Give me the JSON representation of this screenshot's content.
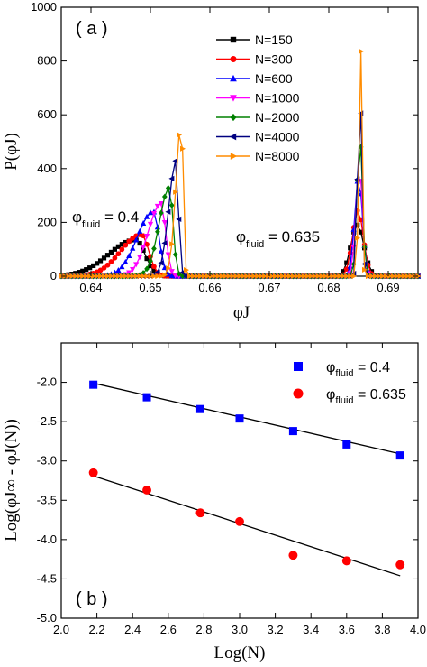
{
  "chart_data": [
    {
      "type": "line",
      "panel_label": "( a )",
      "ylabel": "P(φJ)",
      "xlabel": "φJ",
      "xlim": [
        0.635,
        0.695
      ],
      "ylim": [
        0,
        1000
      ],
      "xticks": [
        0.64,
        0.65,
        0.66,
        0.67,
        0.68,
        0.69
      ],
      "xtick_labels": [
        "0.64",
        "0.65",
        "0.66",
        "0.67",
        "0.68",
        "0.69"
      ],
      "yticks": [
        0,
        200,
        400,
        600,
        800,
        1000
      ],
      "ytick_labels": [
        "0",
        "200",
        "400",
        "600",
        "800",
        "1000"
      ],
      "legend_position": "top-right",
      "annotations": [
        {
          "symbol": "φ",
          "sub": "fluid",
          "text": " = 0.4"
        },
        {
          "symbol": "φ",
          "sub": "fluid",
          "text": " = 0.635"
        }
      ],
      "series": [
        {
          "name": "N=150",
          "color": "#000000",
          "marker": "square",
          "left": {
            "peak_x": 0.6475,
            "peak_y": 135,
            "width": 0.0045
          },
          "right": {
            "peak_x": 0.6848,
            "peak_y": 190,
            "width": 0.0011
          }
        },
        {
          "name": "N=300",
          "color": "#ff0000",
          "marker": "circle",
          "left": {
            "peak_x": 0.6485,
            "peak_y": 155,
            "width": 0.0035
          },
          "right": {
            "peak_x": 0.6849,
            "peak_y": 245,
            "width": 0.0009
          }
        },
        {
          "name": "N=600",
          "color": "#0000ff",
          "marker": "triangle-up",
          "left": {
            "peak_x": 0.6505,
            "peak_y": 240,
            "width": 0.0027
          },
          "right": {
            "peak_x": 0.685,
            "peak_y": 370,
            "width": 0.00065
          }
        },
        {
          "name": "N=1000",
          "color": "#ff00ff",
          "marker": "triangle-down",
          "left": {
            "peak_x": 0.6518,
            "peak_y": 270,
            "width": 0.0022
          },
          "right": {
            "peak_x": 0.6851,
            "peak_y": 410,
            "width": 0.00055
          }
        },
        {
          "name": "N=2000",
          "color": "#008000",
          "marker": "diamond",
          "left": {
            "peak_x": 0.6532,
            "peak_y": 330,
            "width": 0.0017
          },
          "right": {
            "peak_x": 0.6852,
            "peak_y": 530,
            "width": 0.00045
          }
        },
        {
          "name": "N=4000",
          "color": "#000080",
          "marker": "triangle-left",
          "left": {
            "peak_x": 0.6543,
            "peak_y": 430,
            "width": 0.0012
          },
          "right": {
            "peak_x": 0.6852,
            "peak_y": 720,
            "width": 0.00034
          }
        },
        {
          "name": "N=8000",
          "color": "#ff8c00",
          "marker": "triangle-right",
          "left": {
            "peak_x": 0.6552,
            "peak_y": 580,
            "width": 0.0009
          },
          "right": {
            "peak_x": 0.6853,
            "peak_y": 900,
            "width": 0.00026
          }
        }
      ]
    },
    {
      "type": "scatter",
      "panel_label": "( b )",
      "xlabel": "Log(N)",
      "ylabel": "Log(φJ∞ - φJ(N))",
      "xlim": [
        2.0,
        4.0
      ],
      "ylim": [
        -5.0,
        -1.5
      ],
      "xticks": [
        2.0,
        2.2,
        2.4,
        2.6,
        2.8,
        3.0,
        3.2,
        3.4,
        3.6,
        3.8,
        4.0
      ],
      "xtick_labels": [
        "2.0",
        "2.2",
        "2.4",
        "2.6",
        "2.8",
        "3.0",
        "3.2",
        "3.4",
        "3.6",
        "3.8",
        "4.0"
      ],
      "yticks": [
        -5.0,
        -4.5,
        -4.0,
        -3.5,
        -3.0,
        -2.5,
        -2.0,
        -1.5
      ],
      "ytick_labels": [
        "-5.0",
        "-4.5",
        "-4.0",
        "-3.5",
        "-3.0",
        "-2.5",
        "-2.0",
        ""
      ],
      "legend_position": "top-right",
      "series": [
        {
          "name": "φfluid = 0.4",
          "legend_symbol": "φ",
          "legend_sub": "fluid",
          "legend_text": " = 0.4",
          "color": "#0000ff",
          "marker": "square",
          "x": [
            2.18,
            2.48,
            2.78,
            3.0,
            3.3,
            3.6,
            3.9
          ],
          "y": [
            -2.03,
            -2.19,
            -2.34,
            -2.46,
            -2.62,
            -2.79,
            -2.93
          ],
          "fit": {
            "x": [
              2.18,
              3.9
            ],
            "y": [
              -2.01,
              -2.91
            ]
          }
        },
        {
          "name": "φfluid = 0.635",
          "legend_symbol": "φ",
          "legend_sub": "fluid",
          "legend_text": " = 0.635",
          "color": "#ff0000",
          "marker": "circle",
          "x": [
            2.18,
            2.48,
            2.78,
            3.0,
            3.3,
            3.6,
            3.9
          ],
          "y": [
            -3.15,
            -3.37,
            -3.66,
            -3.77,
            -4.2,
            -4.27,
            -4.32
          ],
          "fit": {
            "x": [
              2.18,
              3.9
            ],
            "y": [
              -3.19,
              -4.46
            ]
          }
        }
      ]
    }
  ]
}
